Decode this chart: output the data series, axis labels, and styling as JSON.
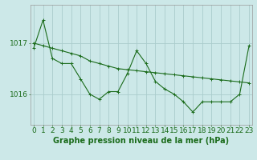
{
  "title": "Graphe pression niveau de la mer (hPa)",
  "background_color": "#cce8e8",
  "grid_color": "#aacccc",
  "line_color": "#1a6b1a",
  "x_values": [
    0,
    1,
    2,
    3,
    4,
    5,
    6,
    7,
    8,
    9,
    10,
    11,
    12,
    13,
    14,
    15,
    16,
    17,
    18,
    19,
    20,
    21,
    22,
    23
  ],
  "y_actual": [
    1016.9,
    1017.45,
    1016.7,
    1016.6,
    1016.6,
    1016.3,
    1016.0,
    1015.9,
    1016.05,
    1016.05,
    1016.4,
    1016.85,
    1016.6,
    1016.25,
    1016.1,
    1016.0,
    1015.85,
    1015.65,
    1015.85,
    1015.85,
    1015.85,
    1015.85,
    1016.0,
    1016.95
  ],
  "y_trend": [
    1017.0,
    1016.95,
    1016.9,
    1016.85,
    1016.8,
    1016.75,
    1016.65,
    1016.6,
    1016.55,
    1016.5,
    1016.48,
    1016.46,
    1016.44,
    1016.42,
    1016.4,
    1016.38,
    1016.36,
    1016.34,
    1016.32,
    1016.3,
    1016.28,
    1016.26,
    1016.24,
    1016.22
  ],
  "yticks": [
    1016,
    1017
  ],
  "ylim": [
    1015.4,
    1017.75
  ],
  "xlim": [
    -0.3,
    23.3
  ],
  "tick_fontsize": 6.5,
  "title_fontsize": 7.0,
  "marker_size": 2.5,
  "line_width": 0.8
}
